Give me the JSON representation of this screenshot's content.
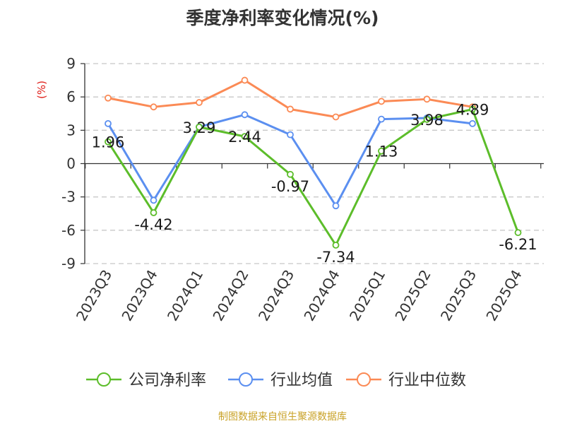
{
  "chart_data": {
    "type": "line",
    "title": "季度净利率变化情况(%)",
    "ylabel": "(%)",
    "xlabel": "",
    "ylim": [
      -9,
      9
    ],
    "yticks": [
      9,
      6,
      3,
      0,
      -3,
      -6,
      -9
    ],
    "grid": true,
    "legend_position": "bottom",
    "categories": [
      "2023Q3",
      "2023Q4",
      "2024Q1",
      "2024Q2",
      "2024Q3",
      "2024Q4",
      "2025Q1",
      "2025Q2",
      "2025Q3",
      "2025Q4"
    ],
    "series": [
      {
        "name": "公司净利率",
        "color": "#5cbd2a",
        "values": [
          1.96,
          -4.42,
          3.29,
          2.44,
          -0.97,
          -7.34,
          1.13,
          3.98,
          4.89,
          -6.21
        ],
        "labels": [
          "1.96",
          "-4.42",
          "3.29",
          "2.44",
          "-0.97",
          "-7.34",
          "1.13",
          "3.98",
          "4.89",
          "-6.21"
        ]
      },
      {
        "name": "行业均值",
        "color": "#5b8ff0",
        "values": [
          3.6,
          -3.3,
          3.3,
          4.4,
          2.6,
          -3.8,
          4.0,
          4.1,
          3.6,
          null
        ]
      },
      {
        "name": "行业中位数",
        "color": "#fb8a55",
        "values": [
          5.9,
          5.1,
          5.5,
          7.5,
          4.9,
          4.2,
          5.6,
          5.8,
          5.1,
          null
        ]
      }
    ]
  },
  "footer": {
    "source": "制图数据来自恒生聚源数据库"
  }
}
